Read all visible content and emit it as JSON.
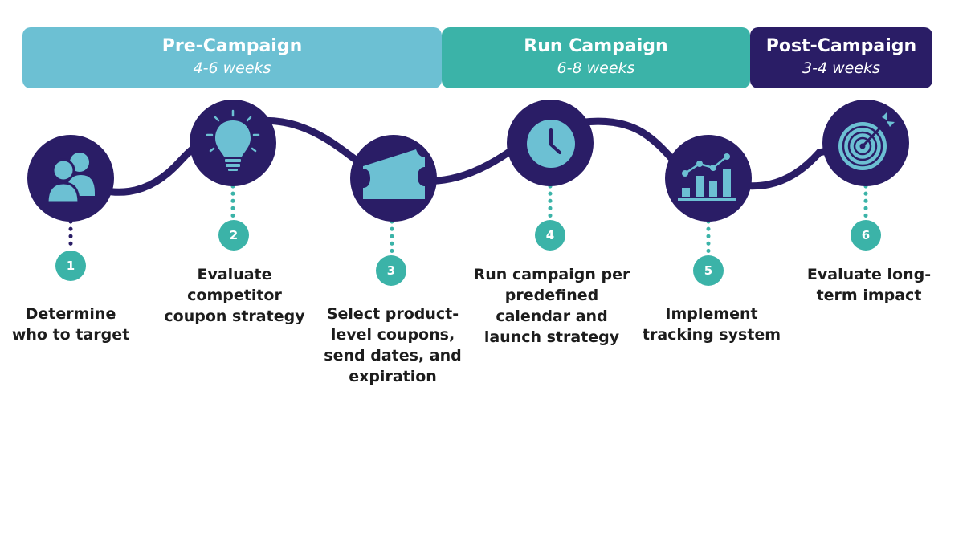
{
  "phases": {
    "pre": {
      "title": "Pre-Campaign",
      "duration": "4-6 weeks"
    },
    "run": {
      "title": "Run Campaign",
      "duration": "6-8 weeks"
    },
    "post": {
      "title": "Post-Campaign",
      "duration": "3-4 weeks"
    }
  },
  "colors": {
    "navy": "#2a1d66",
    "light_blue": "#6cc0d3",
    "teal": "#3bb3a8",
    "number_badge": "#3bb3a8"
  },
  "steps": [
    {
      "number": "1",
      "icon": "users-icon",
      "label_lines": [
        "Determine",
        "who to target"
      ]
    },
    {
      "number": "2",
      "icon": "lightbulb-icon",
      "label_lines": [
        "Evaluate",
        "competitor",
        "coupon strategy"
      ]
    },
    {
      "number": "3",
      "icon": "coupon-ticket-icon",
      "label_lines": [
        "Select product-",
        "level coupons,",
        "send dates, and",
        "expiration"
      ]
    },
    {
      "number": "4",
      "icon": "clock-icon",
      "label_lines": [
        "Run campaign per",
        "predefined",
        "calendar and",
        "launch strategy"
      ]
    },
    {
      "number": "5",
      "icon": "bar-chart-icon",
      "label_lines": [
        "Implement",
        "tracking system"
      ]
    },
    {
      "number": "6",
      "icon": "target-icon",
      "label_lines": [
        "Evaluate long-",
        "term impact"
      ]
    }
  ]
}
